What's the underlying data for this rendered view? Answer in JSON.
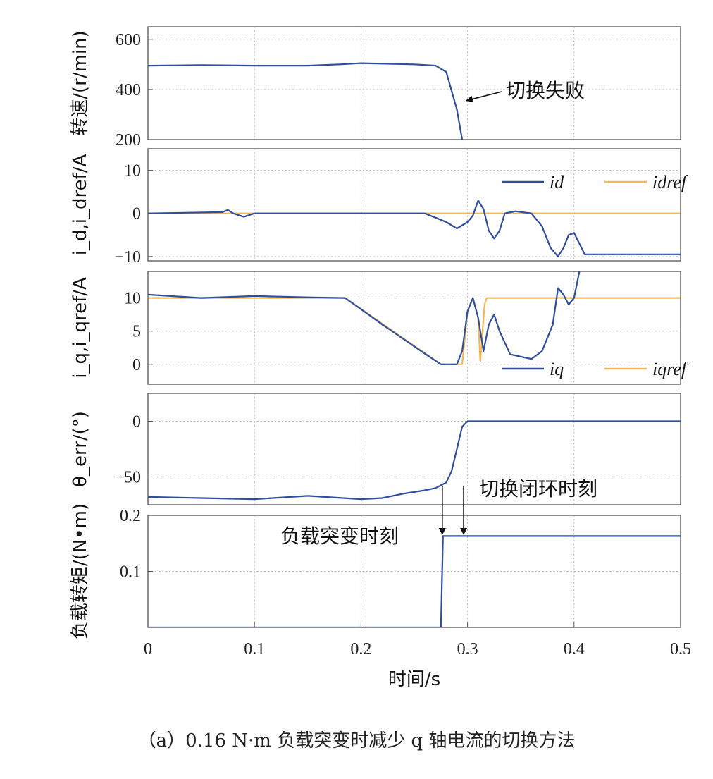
{
  "caption": "（a）0.16 N·m 负载突变时减少 q 轴电流的切换方法",
  "colors": {
    "series_blue": "#2f4f9e",
    "series_orange": "#f5b754",
    "grid": "#b8b8b8",
    "frame": "#555555"
  },
  "chart_data": {
    "type": "line",
    "xlabel": "时间/s",
    "xlim": [
      0,
      0.5
    ],
    "xticks": [
      "0",
      "0.1",
      "0.2",
      "0.3",
      "0.4",
      "0.5"
    ],
    "panels": [
      {
        "id": "speed",
        "ylabel": "转速/(r/min)",
        "ylim": [
          200,
          650
        ],
        "yticks": [
          {
            "v": 200,
            "t": "200"
          },
          {
            "v": 400,
            "t": "400"
          },
          {
            "v": 600,
            "t": "600"
          }
        ],
        "annotations": [
          {
            "text": "切换失败",
            "x": 0.295,
            "y": 350
          }
        ],
        "series": [
          {
            "name": "",
            "color": "blue",
            "points": [
              [
                0,
                495
              ],
              [
                0.02,
                496
              ],
              [
                0.05,
                497
              ],
              [
                0.1,
                495
              ],
              [
                0.15,
                495
              ],
              [
                0.18,
                500
              ],
              [
                0.2,
                505
              ],
              [
                0.25,
                500
              ],
              [
                0.27,
                495
              ],
              [
                0.28,
                470
              ],
              [
                0.29,
                320
              ],
              [
                0.295,
                200
              ]
            ]
          }
        ]
      },
      {
        "id": "id",
        "ylabel": "i_d,i_dref/A",
        "ylim": [
          -11,
          15
        ],
        "yticks": [
          {
            "v": -10,
            "t": "−10"
          },
          {
            "v": 0,
            "t": "0"
          },
          {
            "v": 10,
            "t": "10"
          }
        ],
        "legend": [
          {
            "name": "id",
            "color": "blue"
          },
          {
            "name": "idref",
            "color": "orange"
          }
        ],
        "series": [
          {
            "name": "idref",
            "color": "orange",
            "points": [
              [
                0,
                0
              ],
              [
                0.5,
                0
              ]
            ]
          },
          {
            "name": "id",
            "color": "blue",
            "points": [
              [
                0,
                0
              ],
              [
                0.07,
                0.3
              ],
              [
                0.075,
                0.8
              ],
              [
                0.08,
                0
              ],
              [
                0.09,
                -0.8
              ],
              [
                0.1,
                0
              ],
              [
                0.26,
                0
              ],
              [
                0.27,
                -1
              ],
              [
                0.28,
                -2
              ],
              [
                0.29,
                -3.5
              ],
              [
                0.3,
                -2
              ],
              [
                0.305,
                -0.5
              ],
              [
                0.31,
                3
              ],
              [
                0.315,
                1
              ],
              [
                0.32,
                -4
              ],
              [
                0.325,
                -5.8
              ],
              [
                0.33,
                -4
              ],
              [
                0.335,
                0
              ],
              [
                0.345,
                0.5
              ],
              [
                0.36,
                0
              ],
              [
                0.37,
                -3
              ],
              [
                0.378,
                -8
              ],
              [
                0.385,
                -10
              ],
              [
                0.39,
                -8
              ],
              [
                0.395,
                -5
              ],
              [
                0.4,
                -4.5
              ],
              [
                0.405,
                -7
              ],
              [
                0.41,
                -9.5
              ],
              [
                0.5,
                -9.5
              ]
            ]
          }
        ]
      },
      {
        "id": "iq",
        "ylabel": "i_q,i_qref/A",
        "ylim": [
          -3,
          14
        ],
        "yticks": [
          {
            "v": 0,
            "t": "0"
          },
          {
            "v": 5,
            "t": "5"
          },
          {
            "v": 10,
            "t": "10"
          }
        ],
        "legend": [
          {
            "name": "iq",
            "color": "blue"
          },
          {
            "name": "iqref",
            "color": "orange"
          }
        ],
        "series": [
          {
            "name": "iqref",
            "color": "orange",
            "points": [
              [
                0,
                10
              ],
              [
                0.185,
                10
              ],
              [
                0.275,
                0
              ],
              [
                0.295,
                0
              ],
              [
                0.3,
                8
              ],
              [
                0.305,
                10
              ],
              [
                0.31,
                7
              ],
              [
                0.312,
                0.5
              ],
              [
                0.316,
                9
              ],
              [
                0.318,
                10
              ],
              [
                0.5,
                10
              ]
            ]
          },
          {
            "name": "iq",
            "color": "blue",
            "points": [
              [
                0,
                10.5
              ],
              [
                0.05,
                10
              ],
              [
                0.1,
                10.3
              ],
              [
                0.15,
                10.1
              ],
              [
                0.185,
                10
              ],
              [
                0.2,
                8.3
              ],
              [
                0.22,
                6
              ],
              [
                0.24,
                3.8
              ],
              [
                0.26,
                1.6
              ],
              [
                0.275,
                0
              ],
              [
                0.29,
                0
              ],
              [
                0.295,
                2
              ],
              [
                0.3,
                8
              ],
              [
                0.305,
                10
              ],
              [
                0.31,
                7
              ],
              [
                0.315,
                2
              ],
              [
                0.32,
                6
              ],
              [
                0.325,
                7.5
              ],
              [
                0.33,
                5
              ],
              [
                0.34,
                1.5
              ],
              [
                0.36,
                0.8
              ],
              [
                0.37,
                2
              ],
              [
                0.38,
                6
              ],
              [
                0.385,
                11.5
              ],
              [
                0.39,
                10.5
              ],
              [
                0.395,
                9
              ],
              [
                0.4,
                10
              ],
              [
                0.405,
                14
              ]
            ]
          }
        ]
      },
      {
        "id": "theta",
        "ylabel": "θ_err/(°)",
        "ylim": [
          -75,
          25
        ],
        "yticks": [
          {
            "v": -50,
            "t": "−50"
          },
          {
            "v": 0,
            "t": "0"
          }
        ],
        "annotations": [
          {
            "text": "切换闭环时刻",
            "x": 0.305,
            "y": -62
          }
        ],
        "series": [
          {
            "name": "",
            "color": "blue",
            "points": [
              [
                0,
                -68
              ],
              [
                0.05,
                -69
              ],
              [
                0.1,
                -70
              ],
              [
                0.15,
                -67
              ],
              [
                0.2,
                -70
              ],
              [
                0.22,
                -69
              ],
              [
                0.24,
                -65
              ],
              [
                0.26,
                -62
              ],
              [
                0.27,
                -60
              ],
              [
                0.28,
                -55
              ],
              [
                0.285,
                -45
              ],
              [
                0.29,
                -25
              ],
              [
                0.295,
                -5
              ],
              [
                0.3,
                0
              ],
              [
                0.5,
                0
              ]
            ]
          }
        ]
      },
      {
        "id": "load",
        "ylabel": "负载转矩/(N•m)",
        "ylim": [
          0,
          0.2
        ],
        "yticks": [
          {
            "v": 0.1,
            "t": "0.1"
          },
          {
            "v": 0.2,
            "t": "0.2"
          }
        ],
        "annotations": [
          {
            "text": "负载突变时刻",
            "x": 0.13,
            "y": 0.165
          }
        ],
        "arrows": [
          {
            "x": 0.275
          },
          {
            "x": 0.295
          }
        ],
        "series": [
          {
            "name": "",
            "color": "blue",
            "points": [
              [
                0,
                0
              ],
              [
                0.275,
                0
              ],
              [
                0.277,
                0.163
              ],
              [
                0.5,
                0.163
              ]
            ]
          }
        ]
      }
    ]
  }
}
